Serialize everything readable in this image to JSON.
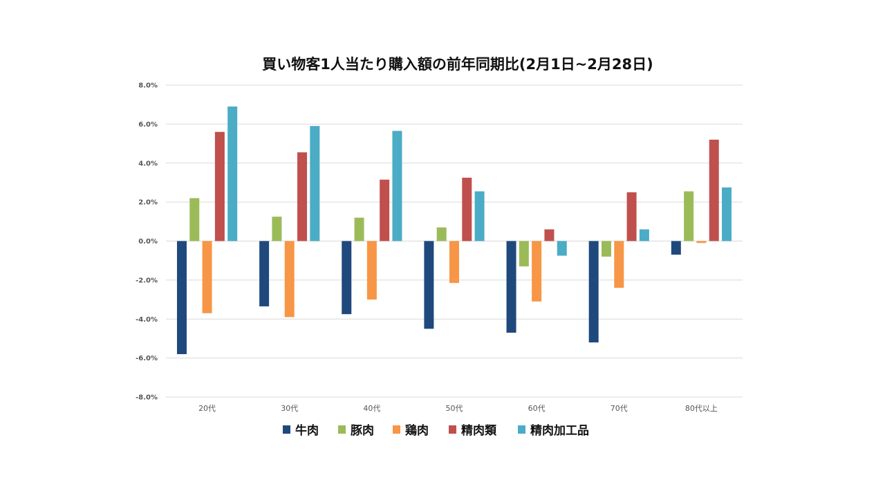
{
  "chart_data": {
    "type": "bar",
    "title": "買い物客1人当たり購入額の前年同期比(2月1日~2月28日)",
    "xlabel": "",
    "ylabel": "",
    "ylim": [
      -8,
      8
    ],
    "yticks": [
      8,
      6,
      4,
      2,
      0,
      -2,
      -4,
      -6,
      -8
    ],
    "ytick_labels": [
      "8.0%",
      "6.0%",
      "4.0%",
      "2.0%",
      "0.0%",
      "-2.0%",
      "-4.0%",
      "-6.0%",
      "-8.0%"
    ],
    "categories": [
      "20代",
      "30代",
      "40代",
      "50代",
      "60代",
      "70代",
      "80代以上"
    ],
    "legend_position": "bottom",
    "grid": true,
    "series": [
      {
        "name": "牛肉",
        "color": "#1f497d",
        "values": [
          -5.8,
          -3.35,
          -3.75,
          -4.5,
          -4.7,
          -5.2,
          -0.7
        ]
      },
      {
        "name": "豚肉",
        "color": "#9bbb59",
        "values": [
          2.2,
          1.25,
          1.2,
          0.7,
          -1.3,
          -0.8,
          2.55
        ]
      },
      {
        "name": "鶏肉",
        "color": "#f79646",
        "values": [
          -3.7,
          -3.9,
          -3.0,
          -2.15,
          -3.1,
          -2.4,
          -0.1
        ]
      },
      {
        "name": "精肉類",
        "color": "#c0504d",
        "values": [
          5.6,
          4.55,
          3.15,
          3.25,
          0.6,
          2.5,
          5.2
        ]
      },
      {
        "name": "精肉加工品",
        "color": "#4bacc6",
        "values": [
          6.9,
          5.9,
          5.65,
          2.55,
          -0.75,
          0.6,
          2.75
        ]
      }
    ]
  }
}
